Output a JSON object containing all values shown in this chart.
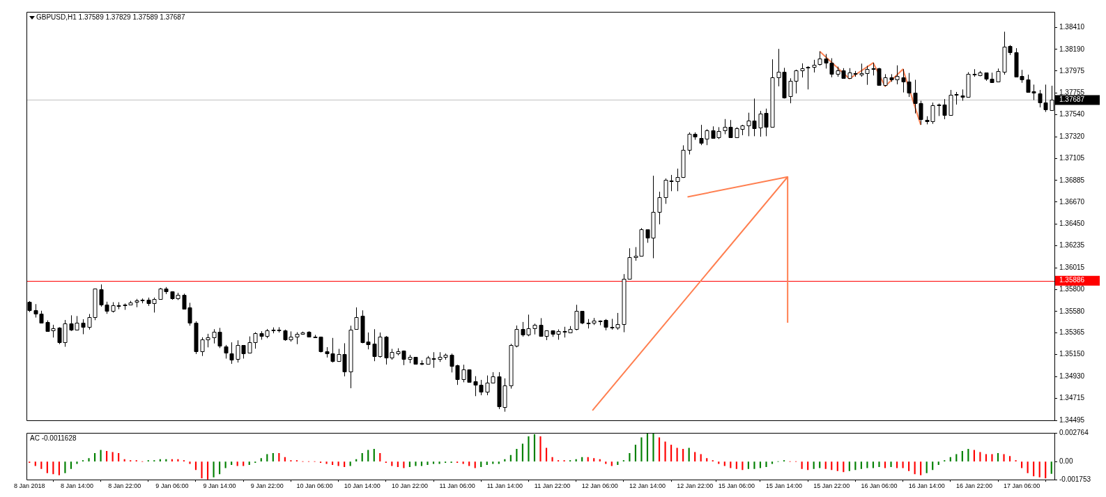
{
  "chart_data": [
    {
      "type": "candlestick",
      "title": "GBPUSD,H1 1.37589 1.37829 1.37589 1.37687",
      "tick_labels": "y",
      "categories": [
        null,
        null,
        null,
        null,
        null,
        null,
        null,
        null,
        null,
        null,
        null,
        null,
        null,
        null,
        null,
        null,
        null,
        null,
        null,
        null,
        null,
        null,
        null,
        null,
        null,
        null,
        null,
        null,
        null,
        null,
        null,
        null,
        null,
        null,
        null,
        null,
        null,
        null,
        null,
        null,
        null,
        null,
        null,
        null,
        null,
        null,
        null,
        null,
        null,
        null,
        null,
        null,
        null,
        null,
        null,
        null,
        null,
        null,
        null,
        null,
        null,
        null,
        null,
        null,
        null,
        null,
        null,
        null,
        null,
        null,
        null,
        null,
        null,
        null,
        null,
        null,
        null,
        null,
        null,
        null,
        null,
        null,
        null,
        null,
        null,
        null,
        null,
        null,
        null,
        null,
        null,
        null,
        null,
        null,
        null,
        null,
        null,
        null,
        null,
        null,
        null,
        null,
        null,
        null,
        null,
        null,
        null,
        null,
        null,
        null,
        null,
        null,
        null,
        null,
        null,
        null,
        null,
        null,
        null,
        null,
        null,
        null,
        null,
        null,
        null,
        null,
        null,
        null,
        null,
        null,
        null,
        null,
        null,
        null,
        null,
        null,
        null,
        null,
        null,
        null,
        null,
        null,
        null,
        null,
        null,
        null,
        null,
        null,
        null,
        null,
        null,
        null,
        null,
        null,
        null,
        null,
        null,
        null,
        null,
        null,
        null,
        null,
        null,
        null,
        null,
        null,
        null,
        null,
        null,
        null,
        null,
        null,
        null
      ],
      "ohlc": [
        [
          1.35679,
          1.35683,
          1.35574,
          1.35591
        ],
        [
          1.35591,
          1.35653,
          1.35519,
          1.35558
        ],
        [
          1.35558,
          1.35587,
          1.3546,
          1.35464
        ],
        [
          1.35473,
          1.35491,
          1.35385,
          1.35385
        ],
        [
          1.35388,
          1.35447,
          1.3532,
          1.35414
        ],
        [
          1.35416,
          1.35423,
          1.35254,
          1.35274
        ],
        [
          1.35276,
          1.35495,
          1.35228,
          1.3546
        ],
        [
          1.3546,
          1.35541,
          1.35385,
          1.35399
        ],
        [
          1.35399,
          1.35534,
          1.35392,
          1.35467
        ],
        [
          1.35469,
          1.35502,
          1.35353,
          1.35425
        ],
        [
          1.35427,
          1.35554,
          1.35399,
          1.35526
        ],
        [
          1.35526,
          1.35808,
          1.35493,
          1.35808
        ],
        [
          1.35803,
          1.35849,
          1.35628,
          1.35648
        ],
        [
          1.3565,
          1.35677,
          1.35556,
          1.35583
        ],
        [
          1.35585,
          1.35672,
          1.35569,
          1.35644
        ],
        [
          1.3564,
          1.35672,
          1.35602,
          1.35644
        ],
        [
          1.35646,
          1.35659,
          1.35596,
          1.3565
        ],
        [
          1.3565,
          1.35685,
          1.35642,
          1.3567
        ],
        [
          1.35677,
          1.35705,
          1.35622,
          1.3569
        ],
        [
          1.35692,
          1.35709,
          1.35661,
          1.35696
        ],
        [
          1.35698,
          1.35718,
          1.35635,
          1.35661
        ],
        [
          1.35663,
          1.35718,
          1.35569,
          1.35703
        ],
        [
          1.35703,
          1.35814,
          1.35703,
          1.35808
        ],
        [
          1.35808,
          1.35823,
          1.35753,
          1.35779
        ],
        [
          1.35781,
          1.35781,
          1.35696,
          1.35709
        ],
        [
          1.35709,
          1.35766,
          1.35694,
          1.35742
        ],
        [
          1.35742,
          1.35757,
          1.35609,
          1.35609
        ],
        [
          1.35617,
          1.35666,
          1.35438,
          1.35467
        ],
        [
          1.35467,
          1.35482,
          1.35156,
          1.35182
        ],
        [
          1.35185,
          1.35322,
          1.35136,
          1.35303
        ],
        [
          1.35303,
          1.35357,
          1.35222,
          1.35322
        ],
        [
          1.35322,
          1.35403,
          1.35261,
          1.35375
        ],
        [
          1.35375,
          1.35416,
          1.35215,
          1.35237
        ],
        [
          1.35233,
          1.35246,
          1.3511,
          1.35169
        ],
        [
          1.35165,
          1.35272,
          1.35058,
          1.35097
        ],
        [
          1.35106,
          1.35292,
          1.35071,
          1.35243
        ],
        [
          1.35243,
          1.35243,
          1.3511,
          1.35165
        ],
        [
          1.35171,
          1.35331,
          1.35163,
          1.3527
        ],
        [
          1.3527,
          1.35373,
          1.35209,
          1.35364
        ],
        [
          1.35362,
          1.35383,
          1.35298,
          1.35333
        ],
        [
          1.35335,
          1.35405,
          1.35313,
          1.35394
        ],
        [
          1.35392,
          1.35421,
          1.35362,
          1.35397
        ],
        [
          1.35392,
          1.35423,
          1.3537,
          1.35397
        ],
        [
          1.35394,
          1.35399,
          1.35287,
          1.353
        ],
        [
          1.353,
          1.35381,
          1.35279,
          1.35329
        ],
        [
          1.35329,
          1.35373,
          1.35254,
          1.35357
        ],
        [
          1.35355,
          1.35379,
          1.35348,
          1.3537
        ],
        [
          1.35375,
          1.35383,
          1.35322,
          1.35329
        ],
        [
          1.35329,
          1.35346,
          1.3532,
          1.35327
        ],
        [
          1.35329,
          1.35329,
          1.35171,
          1.35182
        ],
        [
          1.35185,
          1.35224,
          1.35121,
          1.35163
        ],
        [
          1.35165,
          1.35316,
          1.35071,
          1.35084
        ],
        [
          1.35084,
          1.35207,
          1.35077,
          1.35152
        ],
        [
          1.35154,
          1.35263,
          1.34933,
          1.34979
        ],
        [
          1.34979,
          1.35438,
          1.34815,
          1.35401
        ],
        [
          1.35405,
          1.3562,
          1.35399,
          1.35526
        ],
        [
          1.35534,
          1.35591,
          1.35263,
          1.35272
        ],
        [
          1.35279,
          1.3537,
          1.35202,
          1.35254
        ],
        [
          1.35257,
          1.35403,
          1.35084,
          1.35136
        ],
        [
          1.35136,
          1.3537,
          1.35119,
          1.35329
        ],
        [
          1.35331,
          1.35335,
          1.35051,
          1.35117
        ],
        [
          1.35117,
          1.35207,
          1.35099,
          1.35174
        ],
        [
          1.35165,
          1.35213,
          1.35143,
          1.35185
        ],
        [
          1.35187,
          1.35191,
          1.35045,
          1.35104
        ],
        [
          1.35106,
          1.35147,
          1.35064,
          1.35125
        ],
        [
          1.35125,
          1.35125,
          1.35051,
          1.35058
        ],
        [
          1.35066,
          1.35093,
          1.35045,
          1.35062
        ],
        [
          1.35058,
          1.35136,
          1.35058,
          1.35119
        ],
        [
          1.35115,
          1.35174,
          1.35018,
          1.3511
        ],
        [
          1.35104,
          1.35174,
          1.35077,
          1.35125
        ],
        [
          1.35125,
          1.3516,
          1.35099,
          1.35145
        ],
        [
          1.35147,
          1.3516,
          1.34972,
          1.35038
        ],
        [
          1.35042,
          1.35049,
          1.34848,
          1.34907
        ],
        [
          1.34902,
          1.35049,
          1.34874,
          1.35001
        ],
        [
          1.35001,
          1.35003,
          1.34876,
          1.34878
        ],
        [
          1.34885,
          1.34935,
          1.34736,
          1.3485
        ],
        [
          1.3485,
          1.34898,
          1.34745,
          1.34778
        ],
        [
          1.34778,
          1.34942,
          1.34745,
          1.3487
        ],
        [
          1.3487,
          1.34975,
          1.34863,
          1.34935
        ],
        [
          1.34935,
          1.34975,
          1.34607,
          1.34631
        ],
        [
          1.34627,
          1.34913,
          1.34581,
          1.34841
        ],
        [
          1.34843,
          1.35257,
          1.34811,
          1.35243
        ],
        [
          1.35241,
          1.3544,
          1.35222,
          1.35408
        ],
        [
          1.35408,
          1.35475,
          1.35329,
          1.35346
        ],
        [
          1.35348,
          1.35548,
          1.35333,
          1.35414
        ],
        [
          1.35414,
          1.35458,
          1.35351,
          1.35447
        ],
        [
          1.35447,
          1.35513,
          1.35333,
          1.35333
        ],
        [
          1.35333,
          1.35392,
          1.35294,
          1.35392
        ],
        [
          1.35388,
          1.35392,
          1.35327,
          1.35355
        ],
        [
          1.35355,
          1.35401,
          1.35298,
          1.35381
        ],
        [
          1.35381,
          1.35427,
          1.3532,
          1.35377
        ],
        [
          1.35373,
          1.35434,
          1.35364,
          1.35408
        ],
        [
          1.35408,
          1.35646,
          1.35392,
          1.35585
        ],
        [
          1.35585,
          1.35585,
          1.35453,
          1.35464
        ],
        [
          1.35469,
          1.35504,
          1.3541,
          1.35464
        ],
        [
          1.35467,
          1.35515,
          1.35445,
          1.35486
        ],
        [
          1.35491,
          1.35491,
          1.35443,
          1.35486
        ],
        [
          1.35493,
          1.35504,
          1.35392,
          1.35425
        ],
        [
          1.35427,
          1.35506,
          1.35399,
          1.35423
        ],
        [
          1.35421,
          1.35565,
          1.35397,
          1.35453
        ],
        [
          1.35453,
          1.35952,
          1.35373,
          1.35906
        ],
        [
          1.35908,
          1.36209,
          1.35908,
          1.3612
        ],
        [
          1.3612,
          1.36221,
          1.36085,
          1.36135
        ],
        [
          1.36133,
          1.3641,
          1.36128,
          1.36398
        ],
        [
          1.36398,
          1.36398,
          1.36264,
          1.36317
        ],
        [
          1.36317,
          1.36932,
          1.3611,
          1.36569
        ],
        [
          1.36569,
          1.36773,
          1.36448,
          1.3672
        ],
        [
          1.3672,
          1.36905,
          1.36652,
          1.36892
        ],
        [
          1.36887,
          1.3694,
          1.36778,
          1.36879
        ],
        [
          1.36879,
          1.37003,
          1.36778,
          1.36917
        ],
        [
          1.36917,
          1.37235,
          1.3691,
          1.37188
        ],
        [
          1.37188,
          1.37364,
          1.37144,
          1.37353
        ],
        [
          1.37353,
          1.37364,
          1.3729,
          1.37321
        ],
        [
          1.37311,
          1.37439,
          1.37237,
          1.37258
        ],
        [
          1.373,
          1.37396,
          1.37237,
          1.37386
        ],
        [
          1.37386,
          1.37424,
          1.37303,
          1.37308
        ],
        [
          1.37318,
          1.37416,
          1.37298,
          1.37379
        ],
        [
          1.37381,
          1.37497,
          1.37346,
          1.37416
        ],
        [
          1.37419,
          1.37487,
          1.37313,
          1.37316
        ],
        [
          1.37318,
          1.37416,
          1.37313,
          1.37406
        ],
        [
          1.37399,
          1.37439,
          1.37336,
          1.37432
        ],
        [
          1.37432,
          1.3756,
          1.37326,
          1.3748
        ],
        [
          1.3748,
          1.37701,
          1.37326,
          1.37404
        ],
        [
          1.37409,
          1.37578,
          1.37321,
          1.3755
        ],
        [
          1.37558,
          1.37601,
          1.37326,
          1.37416
        ],
        [
          1.37416,
          1.38092,
          1.37414,
          1.37913
        ],
        [
          1.37913,
          1.38196,
          1.37823,
          1.37971
        ],
        [
          1.37971,
          1.38007,
          1.37701,
          1.37709
        ],
        [
          1.37722,
          1.37903,
          1.37654,
          1.37878
        ],
        [
          1.37878,
          1.37989,
          1.37752,
          1.37984
        ],
        [
          1.37984,
          1.38052,
          1.37911,
          1.38002
        ],
        [
          1.38012,
          1.38024,
          1.37792,
          1.38017
        ],
        [
          1.38019,
          1.38087,
          1.37961,
          1.38037
        ],
        [
          1.38044,
          1.38171,
          1.38029,
          1.38103
        ],
        [
          1.38103,
          1.38145,
          1.38,
          1.38057
        ],
        [
          1.38057,
          1.38103,
          1.37913,
          1.37944
        ],
        [
          1.37944,
          1.38019,
          1.37918,
          1.37984
        ],
        [
          1.37979,
          1.38004,
          1.37898,
          1.37908
        ],
        [
          1.37908,
          1.38004,
          1.37898,
          1.37959
        ],
        [
          1.37954,
          1.37976,
          1.37918,
          1.37949
        ],
        [
          1.37941,
          1.38049,
          1.37918,
          1.37956
        ],
        [
          1.37956,
          1.38027,
          1.37838,
          1.37997
        ],
        [
          1.38002,
          1.38057,
          1.37931,
          1.37997
        ],
        [
          1.38002,
          1.38007,
          1.3783,
          1.37835
        ],
        [
          1.37835,
          1.37944,
          1.37823,
          1.37913
        ],
        [
          1.37911,
          1.37944,
          1.37868,
          1.37888
        ],
        [
          1.37888,
          1.38032,
          1.37843,
          1.37923
        ],
        [
          1.37913,
          1.37994,
          1.37762,
          1.37873
        ],
        [
          1.37873,
          1.37956,
          1.37717,
          1.37762
        ],
        [
          1.37762,
          1.37888,
          1.37553,
          1.37654
        ],
        [
          1.37656,
          1.37679,
          1.37439,
          1.37495
        ],
        [
          1.3749,
          1.37525,
          1.37444,
          1.37472
        ],
        [
          1.37472,
          1.37661,
          1.37449,
          1.37636
        ],
        [
          1.37638,
          1.37651,
          1.37527,
          1.37643
        ],
        [
          1.37641,
          1.37696,
          1.37495,
          1.3754
        ],
        [
          1.3754,
          1.37787,
          1.37538,
          1.37739
        ],
        [
          1.37737,
          1.37767,
          1.37641,
          1.37742
        ],
        [
          1.37732,
          1.37792,
          1.37679,
          1.37717
        ],
        [
          1.37719,
          1.37964,
          1.37712,
          1.37944
        ],
        [
          1.37939,
          1.37994,
          1.37918,
          1.37944
        ],
        [
          1.37934,
          1.37976,
          1.37923,
          1.37961
        ],
        [
          1.37959,
          1.37959,
          1.37878,
          1.37898
        ],
        [
          1.37898,
          1.37959,
          1.37865,
          1.37865
        ],
        [
          1.3787,
          1.38,
          1.3787,
          1.37974
        ],
        [
          1.37971,
          1.38367,
          1.37939,
          1.38221
        ],
        [
          1.38224,
          1.38234,
          1.38135,
          1.3816
        ],
        [
          1.38163,
          1.38203,
          1.37913,
          1.37921
        ],
        [
          1.37926,
          1.37987,
          1.37858,
          1.37888
        ],
        [
          1.37893,
          1.37939,
          1.3776,
          1.37765
        ],
        [
          1.3777,
          1.3784,
          1.37686,
          1.37762
        ],
        [
          1.37755,
          1.37787,
          1.37613,
          1.37659
        ],
        [
          1.37661,
          1.3784,
          1.37568,
          1.37596
        ],
        [
          1.37589,
          1.37829,
          1.37589,
          1.37687
        ]
      ],
      "series": [
        {
          "type": "line",
          "color": "#ff7f50",
          "values": [
            null,
            null,
            null,
            null,
            null,
            null,
            null,
            null,
            null,
            null,
            null,
            null,
            null,
            null,
            null,
            null,
            null,
            null,
            null,
            null,
            null,
            null,
            null,
            null,
            null,
            null,
            null,
            null,
            null,
            null,
            null,
            null,
            null,
            null,
            null,
            null,
            null,
            null,
            null,
            null,
            null,
            null,
            null,
            null,
            null,
            null,
            null,
            null,
            null,
            null,
            null,
            null,
            null,
            null,
            null,
            null,
            null,
            null,
            null,
            null,
            null,
            null,
            null,
            null,
            null,
            null,
            null,
            null,
            null,
            null,
            null,
            null,
            null,
            null,
            null,
            null,
            null,
            null,
            null,
            null,
            null,
            null,
            null,
            null,
            null,
            null,
            null,
            null,
            null,
            null,
            null,
            null,
            null,
            null,
            null,
            null,
            null,
            null,
            null,
            null,
            null,
            null,
            null,
            null,
            null,
            null,
            null,
            null,
            null,
            null,
            null,
            null,
            null,
            null,
            null,
            null,
            null,
            null,
            null,
            null,
            null,
            null,
            null,
            null,
            null,
            null,
            null,
            null,
            null,
            null,
            null,
            null,
            null,
            1.38171,
            null,
            null,
            null,
            null,
            1.37898,
            null,
            null,
            null,
            1.38057,
            null,
            1.37823,
            null,
            null,
            1.37994,
            null,
            null,
            1.37439,
            null,
            null,
            null,
            null,
            null,
            null,
            null,
            null,
            null,
            null,
            null,
            null,
            null,
            null,
            null,
            null,
            null,
            null,
            null,
            null,
            null,
            null
          ]
        }
      ],
      "ylim": [
        1.34495,
        1.38565
      ],
      "yticks": [
        {
          "value": 1.3841,
          "label": "1.38410"
        },
        {
          "value": 1.3819,
          "label": "1.38190"
        },
        1.37975,
        1.37755,
        {
          "value": 1.3754,
          "label": "1.37540"
        },
        {
          "value": 1.3732,
          "label": "1.37320"
        },
        1.37105,
        1.36885,
        {
          "value": 1.3667,
          "label": "1.36670"
        },
        {
          "value": 1.3645,
          "label": "1.36450"
        },
        1.36235,
        1.36015,
        {
          "value": 1.358,
          "label": "1.35800"
        },
        {
          "value": 1.3558,
          "label": "1.35580"
        },
        1.35365,
        {
          "value": 1.3515,
          "label": "1.35150"
        },
        {
          "value": 1.3493,
          "label": "1.34930"
        },
        1.34715,
        1.34495
      ],
      "ref_lines": [
        {
          "axis": "y",
          "value": 1.35886,
          "label": "1.35886",
          "color": "#ff0000"
        },
        {
          "axis": "y",
          "value": 1.37687,
          "label": "1.37687",
          "color": "#c0c0c0"
        }
      ]
    },
    {
      "type": "bar",
      "title": "AC -0.0011628",
      "categories": [
        "8 Jan 2018",
        null,
        null,
        null,
        null,
        null,
        null,
        null,
        "8 Jan 14:00",
        null,
        null,
        null,
        null,
        null,
        null,
        null,
        "8 Jan 22:00",
        null,
        null,
        null,
        null,
        null,
        null,
        null,
        "9 Jan 06:00",
        null,
        null,
        null,
        null,
        null,
        null,
        null,
        "9 Jan 14:00",
        null,
        null,
        null,
        null,
        null,
        null,
        null,
        "9 Jan 22:00",
        null,
        null,
        null,
        null,
        null,
        null,
        null,
        "10 Jan 06:00",
        null,
        null,
        null,
        null,
        null,
        null,
        null,
        "10 Jan 14:00",
        null,
        null,
        null,
        null,
        null,
        null,
        null,
        "10 Jan 22:00",
        null,
        null,
        null,
        null,
        null,
        null,
        null,
        "11 Jan 06:00",
        null,
        null,
        null,
        null,
        null,
        null,
        null,
        "11 Jan 14:00",
        null,
        null,
        null,
        null,
        null,
        null,
        null,
        "11 Jan 22:00",
        null,
        null,
        null,
        null,
        null,
        null,
        null,
        "12 Jan 06:00",
        null,
        null,
        null,
        null,
        null,
        null,
        null,
        "12 Jan 14:00",
        null,
        null,
        null,
        null,
        null,
        null,
        null,
        "12 Jan 22:00",
        null,
        null,
        null,
        null,
        null,
        null,
        "15 Jan 06:00",
        null,
        null,
        null,
        null,
        null,
        null,
        null,
        "15 Jan 14:00",
        null,
        null,
        null,
        null,
        null,
        null,
        null,
        "15 Jan 22:00",
        null,
        null,
        null,
        null,
        null,
        null,
        null,
        "16 Jan 06:00",
        null,
        null,
        null,
        null,
        null,
        null,
        null,
        "16 Jan 14:00",
        null,
        null,
        null,
        null,
        null,
        null,
        null,
        "16 Jan 22:00",
        null,
        null,
        null,
        null,
        null,
        null,
        null,
        "17 Jan 06:00",
        null,
        null,
        null,
        null,
        null
      ],
      "values": [
        -0.0001,
        -0.0004,
        -0.0007,
        -0.0011,
        -0.0012,
        -0.0013,
        -0.0011,
        -0.0007,
        -0.0002,
        0.0001,
        0.0003,
        0.0008,
        0.0011,
        0.001,
        0.0009,
        0.0008,
        0.0002,
        0.0001,
        0.0001,
        0,
        0.0001,
        0.0001,
        0.0002,
        0.0002,
        0.0002,
        0.0002,
        0.0001,
        -0.0002,
        -0.0008,
        -0.0016,
        -0.0017,
        -0.0015,
        -0.0012,
        -0.0006,
        -0.0003,
        -0.0004,
        -0.0004,
        -0.0003,
        -0.0001,
        0.0003,
        0.0007,
        0.0008,
        0.0008,
        0.0004,
        0.0001,
        0.0001,
        0,
        0,
        0,
        -0.0001,
        -0.0002,
        -0.0003,
        -0.0004,
        -0.0005,
        -0.0004,
        0.0002,
        0.0008,
        0.0011,
        0.0012,
        0.0008,
        -0.0001,
        -0.0004,
        -0.0005,
        -0.0006,
        -0.0005,
        -0.0004,
        -0.0004,
        -0.0003,
        -0.0002,
        -0.0002,
        -0.0001,
        -0.0001,
        -0.0001,
        -0.0002,
        -0.0004,
        -0.0006,
        -0.0005,
        -0.0003,
        -0.0002,
        -0.0002,
        0.0002,
        0.0006,
        0.0012,
        0.0017,
        0.0024,
        0.0026,
        0.0024,
        0.0013,
        0.0004,
        0.0001,
        0.0001,
        0.0001,
        0.0002,
        0.0004,
        0.0004,
        0.0003,
        0.0002,
        -0.0002,
        -0.0004,
        -0.0003,
        0.0001,
        0.0008,
        0.0016,
        0.0023,
        0.0027,
        0.002764,
        0.0023,
        0.0019,
        0.0016,
        0.0013,
        0.0012,
        0.0013,
        0.0009,
        0.0007,
        0.0003,
        0.0001,
        -0.0002,
        -0.0004,
        -0.0006,
        -0.0007,
        -0.0008,
        -0.0007,
        -0.0007,
        -0.0006,
        -0.0005,
        -0.0002,
        0,
        0.0001,
        0,
        0,
        -0.0007,
        -0.0008,
        -0.0007,
        -0.0006,
        -0.0007,
        -0.0008,
        -0.0009,
        -0.001,
        -0.0009,
        -0.0008,
        -0.0007,
        -0.0006,
        -0.0006,
        -0.0005,
        -0.0006,
        -0.0005,
        -0.0006,
        -0.0006,
        -0.0009,
        -0.0012,
        -0.0013,
        -0.0011,
        -0.0008,
        -0.0003,
        0.0001,
        0.0004,
        0.0007,
        0.001,
        0.0012,
        0.0011,
        0.0009,
        0.0007,
        0.0007,
        0.0008,
        0.0007,
        0.0005,
        0.0001,
        -0.0006,
        -0.0011,
        -0.0014,
        -0.0015,
        -0.0016,
        -0.0011628
      ],
      "colors": [
        "#ff0000",
        "#ff0000",
        "#ff0000",
        "#ff0000",
        "#ff0000",
        "#ff0000",
        "#008000",
        "#008000",
        "#008000",
        "#008000",
        "#008000",
        "#008000",
        "#008000",
        "#ff0000",
        "#ff0000",
        "#ff0000",
        "#ff0000",
        "#ff0000",
        "#ff0000",
        "#ff0000",
        "#008000",
        "#008000",
        "#008000",
        "#008000",
        "#ff0000",
        "#ff0000",
        "#ff0000",
        "#ff0000",
        "#ff0000",
        "#ff0000",
        "#ff0000",
        "#008000",
        "#008000",
        "#008000",
        "#008000",
        "#ff0000",
        "#ff0000",
        "#008000",
        "#008000",
        "#008000",
        "#008000",
        "#008000",
        "#ff0000",
        "#ff0000",
        "#ff0000",
        "#ff0000",
        "#ff0000",
        "#ff0000",
        "#ff0000",
        "#ff0000",
        "#ff0000",
        "#ff0000",
        "#ff0000",
        "#ff0000",
        "#008000",
        "#008000",
        "#008000",
        "#008000",
        "#008000",
        "#ff0000",
        "#ff0000",
        "#ff0000",
        "#ff0000",
        "#ff0000",
        "#008000",
        "#008000",
        "#008000",
        "#008000",
        "#008000",
        "#008000",
        "#008000",
        "#008000",
        "#ff0000",
        "#ff0000",
        "#ff0000",
        "#ff0000",
        "#008000",
        "#008000",
        "#008000",
        "#008000",
        "#008000",
        "#008000",
        "#008000",
        "#008000",
        "#008000",
        "#008000",
        "#ff0000",
        "#ff0000",
        "#ff0000",
        "#ff0000",
        "#ff0000",
        "#008000",
        "#008000",
        "#008000",
        "#ff0000",
        "#ff0000",
        "#ff0000",
        "#ff0000",
        "#ff0000",
        "#008000",
        "#008000",
        "#008000",
        "#008000",
        "#008000",
        "#008000",
        "#008000",
        "#ff0000",
        "#ff0000",
        "#ff0000",
        "#ff0000",
        "#ff0000",
        "#008000",
        "#ff0000",
        "#ff0000",
        "#ff0000",
        "#ff0000",
        "#ff0000",
        "#ff0000",
        "#ff0000",
        "#ff0000",
        "#ff0000",
        "#008000",
        "#008000",
        "#008000",
        "#008000",
        "#008000",
        "#008000",
        "#008000",
        "#ff0000",
        "#ff0000",
        "#ff0000",
        "#ff0000",
        "#008000",
        "#008000",
        "#ff0000",
        "#ff0000",
        "#ff0000",
        "#ff0000",
        "#008000",
        "#008000",
        "#008000",
        "#008000",
        "#008000",
        "#008000",
        "#ff0000",
        "#008000",
        "#ff0000",
        "#ff0000",
        "#ff0000",
        "#ff0000",
        "#ff0000",
        "#008000",
        "#008000",
        "#008000",
        "#008000",
        "#008000",
        "#008000",
        "#008000",
        "#008000",
        "#ff0000",
        "#ff0000",
        "#ff0000",
        "#ff0000",
        "#008000",
        "#ff0000",
        "#ff0000",
        "#ff0000",
        "#ff0000",
        "#ff0000",
        "#ff0000",
        "#ff0000",
        "#ff0000",
        "#008000"
      ],
      "ylim": [
        -0.001753,
        0.002764
      ],
      "yticks": [
        0.002764,
        {
          "value": 0,
          "label": "0.00"
        },
        -0.001753
      ]
    }
  ]
}
